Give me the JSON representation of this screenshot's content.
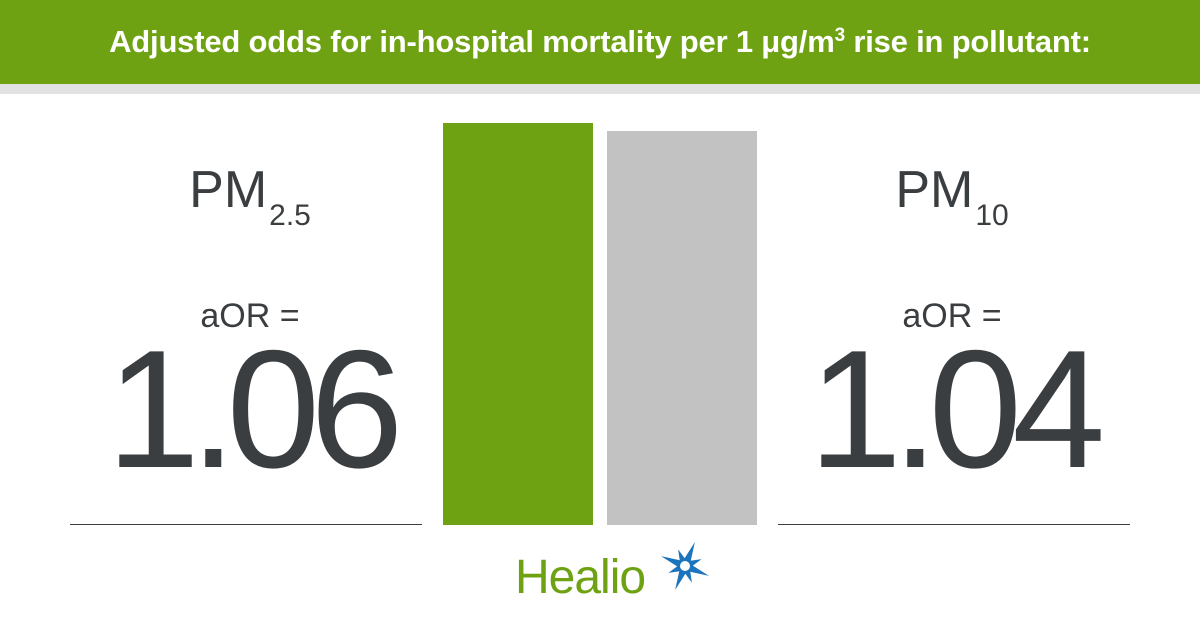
{
  "header": {
    "title_main": "Adjusted odds for in-hospital mortality per 1 μg/m",
    "title_sup": "3",
    "title_tail": " rise in pollutant:"
  },
  "colors": {
    "green": "#6ea212",
    "gray": "#c2c2c2",
    "text": "#3b3e40"
  },
  "chart_data": {
    "type": "bar",
    "title": "Adjusted odds for in-hospital mortality per 1 μg/m³ rise in pollutant:",
    "ylim": [
      0,
      1.06
    ],
    "series": [
      {
        "pollutant": "PM",
        "subscript": "2.5",
        "metric_label": "aOR =",
        "value_text": "1.06",
        "value": 1.06,
        "color": "#6ea212"
      },
      {
        "pollutant": "PM",
        "subscript": "10",
        "metric_label": "aOR =",
        "value_text": "1.04",
        "value": 1.04,
        "color": "#c2c2c2"
      }
    ]
  },
  "logo": {
    "text": "Healio",
    "icon": "star-burst-icon",
    "icon_color": "#1c75bc"
  }
}
